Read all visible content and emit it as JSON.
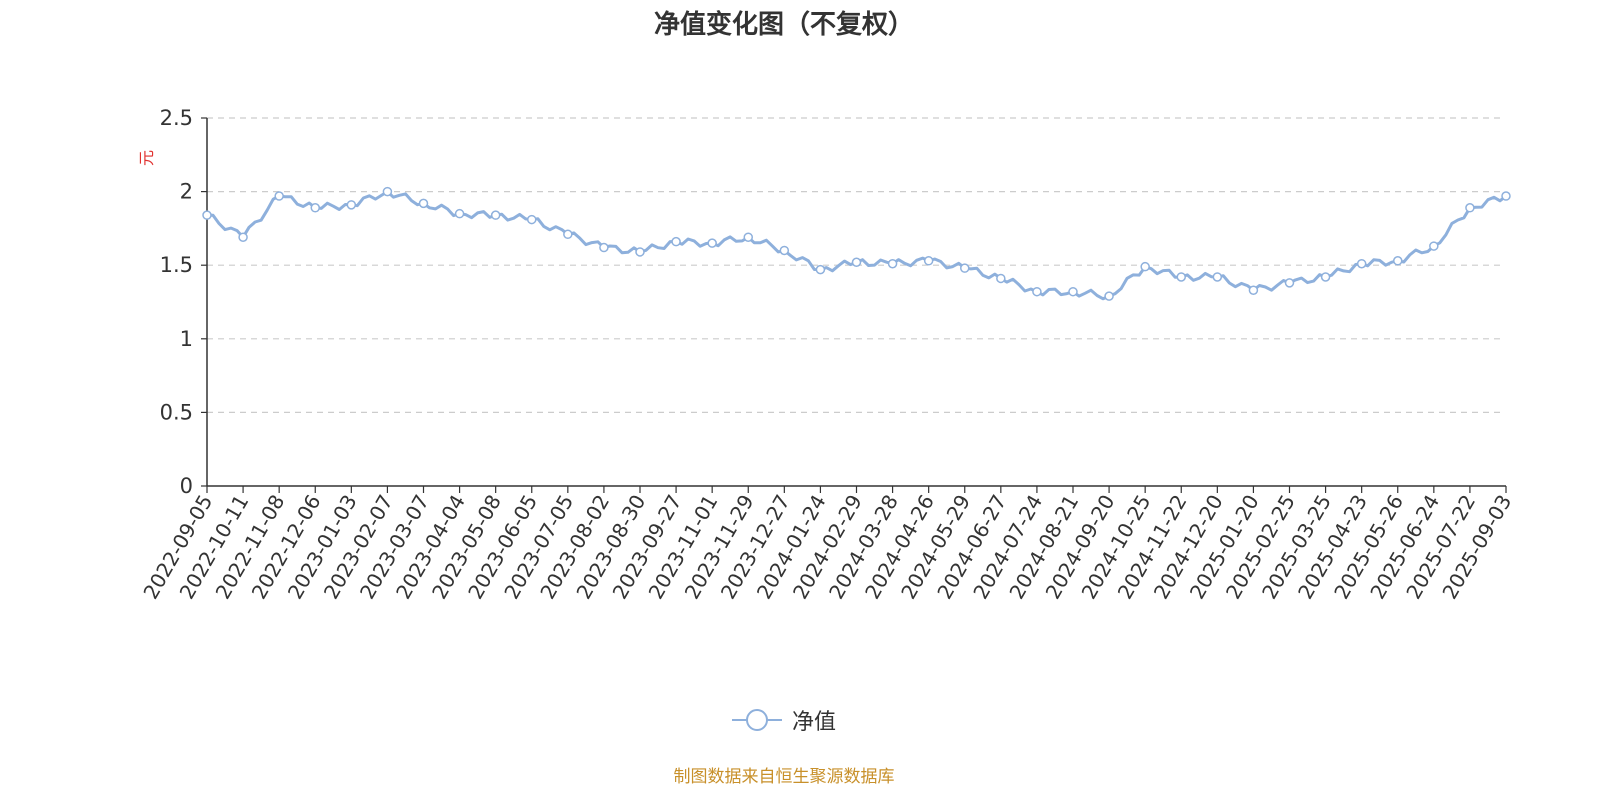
{
  "chart_data": {
    "type": "line",
    "title": "净值变化图（不复权）",
    "ylabel": "元",
    "xlabel": "",
    "ylim": [
      0,
      2.5
    ],
    "yticks": [
      "0",
      "0.5",
      "1",
      "1.5",
      "2",
      "2.5"
    ],
    "grid": true,
    "legend_position": "bottom-center",
    "colors": {
      "line": "#8eb0dc",
      "marker_fill": "#ffffff",
      "axis": "#333333",
      "grid": "#cccccc",
      "ylabel": "#e0312f",
      "source": "#c8902a"
    },
    "x": [
      "2022-09-05",
      "2022-10-11",
      "2022-11-08",
      "2022-12-06",
      "2023-01-03",
      "2023-02-07",
      "2023-03-07",
      "2023-04-04",
      "2023-05-08",
      "2023-06-05",
      "2023-07-05",
      "2023-08-02",
      "2023-08-30",
      "2023-09-27",
      "2023-11-01",
      "2023-11-29",
      "2023-12-27",
      "2024-01-24",
      "2024-02-29",
      "2024-03-28",
      "2024-04-26",
      "2024-05-29",
      "2024-06-27",
      "2024-07-24",
      "2024-08-21",
      "2024-09-20",
      "2024-10-25",
      "2024-11-22",
      "2024-12-20",
      "2025-01-20",
      "2025-02-25",
      "2025-03-25",
      "2025-04-23",
      "2025-05-26",
      "2025-06-24",
      "2025-07-22",
      "2025-09-03"
    ],
    "series": [
      {
        "name": "净值",
        "values": [
          1.84,
          1.69,
          1.97,
          1.89,
          1.91,
          2.0,
          1.92,
          1.85,
          1.84,
          1.81,
          1.71,
          1.62,
          1.59,
          1.66,
          1.65,
          1.69,
          1.6,
          1.47,
          1.52,
          1.51,
          1.53,
          1.48,
          1.41,
          1.32,
          1.32,
          1.29,
          1.49,
          1.42,
          1.42,
          1.33,
          1.38,
          1.42,
          1.51,
          1.53,
          1.63,
          1.89,
          1.97
        ]
      }
    ]
  },
  "legend": {
    "label": "净值"
  },
  "source_note": "制图数据来自恒生聚源数据库"
}
